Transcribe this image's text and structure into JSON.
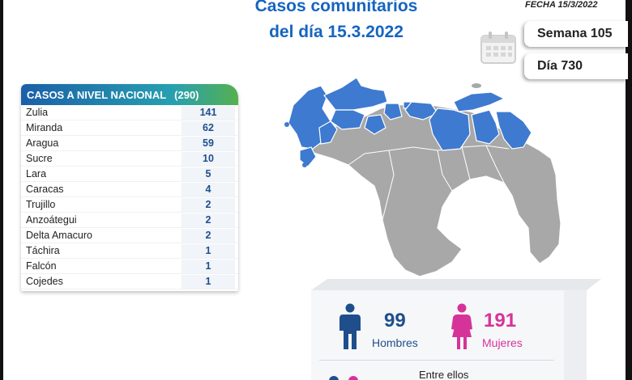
{
  "header": {
    "title_line1": "Casos comunitarios",
    "title_line2": "del día 15.3.2022",
    "fecha": "FECHA 15/3/2022"
  },
  "info": {
    "semana": "Semana 105",
    "dia": "Día 730"
  },
  "table": {
    "title": "CASOS A NIVEL NACIONAL",
    "total": "(290)",
    "rows": [
      {
        "name": "Zulia",
        "value": "141"
      },
      {
        "name": "Miranda",
        "value": "62"
      },
      {
        "name": "Aragua",
        "value": "59"
      },
      {
        "name": "Sucre",
        "value": "10"
      },
      {
        "name": "Lara",
        "value": "5"
      },
      {
        "name": "Caracas",
        "value": "4"
      },
      {
        "name": "Trujillo",
        "value": "2"
      },
      {
        "name": "Anzoátegui",
        "value": "2"
      },
      {
        "name": "Delta Amacuro",
        "value": "2"
      },
      {
        "name": "Táchira",
        "value": "1"
      },
      {
        "name": "Falcón",
        "value": "1"
      },
      {
        "name": "Cojedes",
        "value": "1"
      }
    ]
  },
  "gender": {
    "men_count": "99",
    "men_label": "Hombres",
    "women_count": "191",
    "women_label": "Mujeres",
    "men_color": "#1f4e8c",
    "women_color": "#d6339a"
  },
  "footer": {
    "entre_ellos": "Entre ellos"
  },
  "colors": {
    "highlight_state": "#3e7ad0",
    "other_state": "#a8a8a8"
  }
}
